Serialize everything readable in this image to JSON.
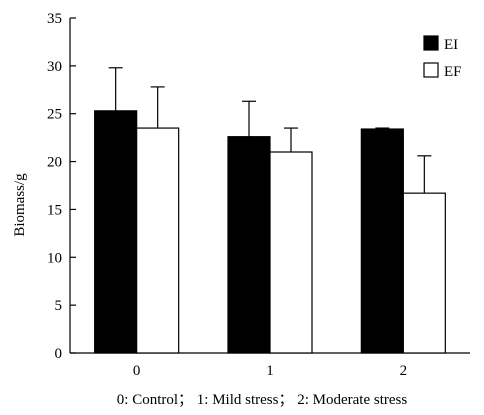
{
  "chart_data": {
    "type": "bar",
    "categories": [
      "0",
      "1",
      "2"
    ],
    "series": [
      {
        "name": "EI",
        "values": [
          25.3,
          22.6,
          23.4
        ],
        "errors": [
          4.5,
          3.7,
          0.1
        ],
        "color": "#000000"
      },
      {
        "name": "EF",
        "values": [
          23.5,
          21.0,
          16.7
        ],
        "errors": [
          4.3,
          2.5,
          3.9
        ],
        "color": "#ffffff"
      }
    ],
    "ylabel": "Biomass/g",
    "ylim": [
      0,
      35
    ],
    "yticks": [
      "0",
      "5",
      "10",
      "15",
      "20",
      "25",
      "30",
      "35"
    ],
    "legend_position": "top-right",
    "caption": "0: Control； 1: Mild stress； 2: Moderate stress"
  }
}
